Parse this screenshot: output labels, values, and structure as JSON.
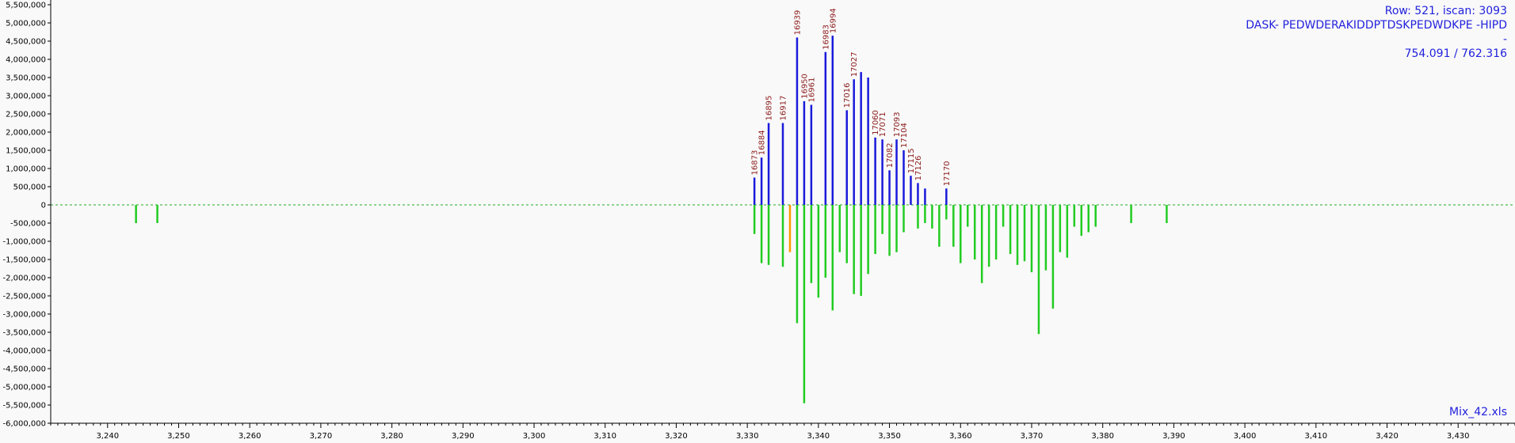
{
  "info": {
    "row_line": "Row: 521, iscan: 3093",
    "sequence_line": "DASK- PEDWDERAKIDDPTDSKPEDWDKPE -HIPD",
    "dash": "-",
    "mz_line": "754.091 / 762.316",
    "file_name": "Mix_42.xls"
  },
  "colors": {
    "upper": "#1a1adb",
    "lower": "#22cc22",
    "highlight": "#ff9900",
    "label": "#8b1a1a",
    "baseline": "#22aa22",
    "axis": "#000000",
    "info_text": "#2222dd"
  },
  "chart_data": {
    "type": "bar",
    "xlim": [
      3232,
      3438
    ],
    "ylim": [
      -6000000,
      5500000
    ],
    "x_ticks": [
      3240,
      3250,
      3260,
      3270,
      3280,
      3290,
      3300,
      3310,
      3320,
      3330,
      3340,
      3350,
      3360,
      3370,
      3380,
      3390,
      3400,
      3410,
      3420,
      3430
    ],
    "y_ticks": [
      5500000,
      5000000,
      4500000,
      4000000,
      3500000,
      3000000,
      2500000,
      2000000,
      1500000,
      1000000,
      500000,
      0,
      -500000,
      -1000000,
      -1500000,
      -2000000,
      -2500000,
      -3000000,
      -3500000,
      -4000000,
      -4500000,
      -5000000,
      -5500000,
      -6000000
    ],
    "grid": false,
    "baseline": "dashed at y = 0",
    "series": [
      {
        "points": [
          {
            "x": 3331,
            "y": 750000,
            "label": "16873"
          },
          {
            "x": 3332,
            "y": 1300000,
            "label": "16884"
          },
          {
            "x": 3333,
            "y": 2250000,
            "label": "16895"
          },
          {
            "x": 3335,
            "y": 2250000,
            "label": "16917"
          },
          {
            "x": 3337,
            "y": 4600000,
            "label": "16939"
          },
          {
            "x": 3338,
            "y": 2850000,
            "label": "16950"
          },
          {
            "x": 3339,
            "y": 2750000,
            "label": "16961"
          },
          {
            "x": 3341,
            "y": 4200000,
            "label": "16983"
          },
          {
            "x": 3342,
            "y": 4650000,
            "label": "16994"
          },
          {
            "x": 3344,
            "y": 2600000,
            "label": "17016"
          },
          {
            "x": 3345,
            "y": 3450000,
            "label": "17027"
          },
          {
            "x": 3346,
            "y": 3650000,
            "label": ""
          },
          {
            "x": 3347,
            "y": 3500000,
            "label": ""
          },
          {
            "x": 3348,
            "y": 1850000,
            "label": "17060"
          },
          {
            "x": 3349,
            "y": 1800000,
            "label": "17071"
          },
          {
            "x": 3350,
            "y": 950000,
            "label": "17082"
          },
          {
            "x": 3351,
            "y": 1800000,
            "label": "17093"
          },
          {
            "x": 3352,
            "y": 1500000,
            "label": "17104"
          },
          {
            "x": 3353,
            "y": 800000,
            "label": "17115"
          },
          {
            "x": 3354,
            "y": 600000,
            "label": "17126"
          },
          {
            "x": 3355,
            "y": 450000,
            "label": ""
          },
          {
            "x": 3358,
            "y": 450000,
            "label": "17170"
          }
        ]
      },
      {
        "points": [
          {
            "x": 3244,
            "y": -500000
          },
          {
            "x": 3247,
            "y": -500000
          },
          {
            "x": 3331,
            "y": -800000
          },
          {
            "x": 3332,
            "y": -1600000
          },
          {
            "x": 3333,
            "y": -1650000
          },
          {
            "x": 3335,
            "y": -1700000
          },
          {
            "x": 3336,
            "y": -1300000,
            "highlight": true
          },
          {
            "x": 3337,
            "y": -3250000
          },
          {
            "x": 3338,
            "y": -5450000
          },
          {
            "x": 3339,
            "y": -2150000
          },
          {
            "x": 3340,
            "y": -2550000
          },
          {
            "x": 3341,
            "y": -2000000
          },
          {
            "x": 3342,
            "y": -2900000
          },
          {
            "x": 3343,
            "y": -1300000
          },
          {
            "x": 3344,
            "y": -1600000
          },
          {
            "x": 3345,
            "y": -2450000
          },
          {
            "x": 3346,
            "y": -2500000
          },
          {
            "x": 3347,
            "y": -1900000
          },
          {
            "x": 3348,
            "y": -1350000
          },
          {
            "x": 3349,
            "y": -800000
          },
          {
            "x": 3350,
            "y": -1400000
          },
          {
            "x": 3351,
            "y": -1300000
          },
          {
            "x": 3352,
            "y": -750000
          },
          {
            "x": 3354,
            "y": -650000
          },
          {
            "x": 3355,
            "y": -500000
          },
          {
            "x": 3356,
            "y": -650000
          },
          {
            "x": 3357,
            "y": -1150000
          },
          {
            "x": 3358,
            "y": -400000
          },
          {
            "x": 3359,
            "y": -1150000
          },
          {
            "x": 3360,
            "y": -1600000
          },
          {
            "x": 3361,
            "y": -600000
          },
          {
            "x": 3362,
            "y": -1500000
          },
          {
            "x": 3363,
            "y": -2150000
          },
          {
            "x": 3364,
            "y": -1700000
          },
          {
            "x": 3365,
            "y": -1500000
          },
          {
            "x": 3366,
            "y": -600000
          },
          {
            "x": 3367,
            "y": -1350000
          },
          {
            "x": 3368,
            "y": -1650000
          },
          {
            "x": 3369,
            "y": -1550000
          },
          {
            "x": 3370,
            "y": -1850000
          },
          {
            "x": 3371,
            "y": -3550000
          },
          {
            "x": 3372,
            "y": -1800000
          },
          {
            "x": 3373,
            "y": -2850000
          },
          {
            "x": 3374,
            "y": -1300000
          },
          {
            "x": 3375,
            "y": -1450000
          },
          {
            "x": 3376,
            "y": -600000
          },
          {
            "x": 3377,
            "y": -850000
          },
          {
            "x": 3378,
            "y": -750000
          },
          {
            "x": 3379,
            "y": -600000
          },
          {
            "x": 3384,
            "y": -500000
          },
          {
            "x": 3389,
            "y": -500000
          }
        ]
      }
    ]
  }
}
